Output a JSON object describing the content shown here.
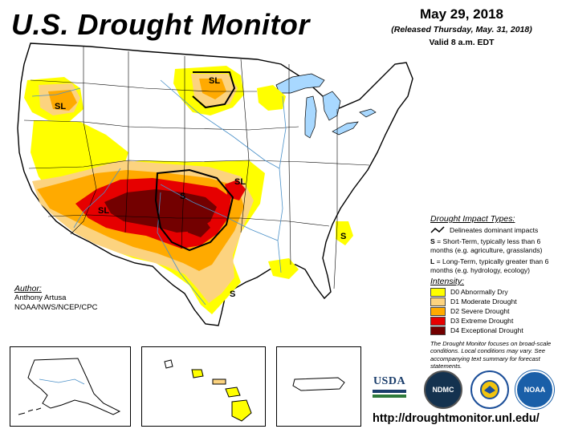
{
  "header": {
    "title": "U.S. Drought Monitor",
    "date": "May 29, 2018",
    "released": "(Released Thursday, May. 31, 2018)",
    "valid": "Valid 8 a.m. EDT"
  },
  "map": {
    "impact_labels": [
      "SL",
      "SL",
      "SL",
      "S",
      "SL",
      "S",
      "S"
    ],
    "colors": {
      "D0": "#ffff00",
      "D1": "#fcd37f",
      "D2": "#ffaa00",
      "D3": "#e60000",
      "D4": "#730000",
      "water": "#a8d8ff",
      "state_line": "#000000",
      "river": "#4a90c8"
    }
  },
  "author": {
    "header": "Author:",
    "name": "Anthony Artusa",
    "org": "NOAA/NWS/NCEP/CPC"
  },
  "legend": {
    "impact_header": "Drought Impact Types:",
    "delineates": "Delineates dominant impacts",
    "s_key": "S",
    "s_text": "= Short-Term, typically less than 6 months (e.g. agriculture, grasslands)",
    "l_key": "L",
    "l_text": "= Long-Term, typically greater than 6 months (e.g. hydrology, ecology)",
    "intensity_header": "Intensity:",
    "intensity": [
      {
        "label": "D0 Abnormally Dry",
        "color": "#ffff00"
      },
      {
        "label": "D1 Moderate Drought",
        "color": "#fcd37f"
      },
      {
        "label": "D2 Severe Drought",
        "color": "#ffaa00"
      },
      {
        "label": "D3 Extreme Drought",
        "color": "#e60000"
      },
      {
        "label": "D4 Exceptional Drought",
        "color": "#730000"
      }
    ]
  },
  "note": "The Drought Monitor focuses on broad-scale conditions. Local conditions may vary. See accompanying text summary for forecast statements.",
  "logos": {
    "usda": "USDA",
    "ndmc": "NDMC",
    "noaa": "NOAA"
  },
  "url": "http://droughtmonitor.unl.edu/"
}
